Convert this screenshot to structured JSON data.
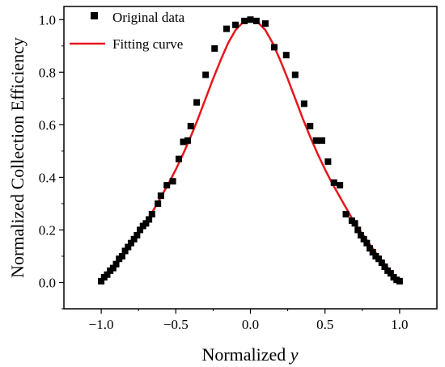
{
  "chart_data": {
    "type": "scatter",
    "xlabel": "Normalized y",
    "ylabel": "Normalized Collection Efficiency",
    "xlim": [
      -1.25,
      1.25
    ],
    "ylim": [
      -0.1,
      1.05
    ],
    "xticks": [
      -1.0,
      -0.5,
      0.0,
      0.5,
      1.0
    ],
    "xtick_labels": [
      "−1.0",
      "−0.5",
      "0.0",
      "0.5",
      "1.0"
    ],
    "yticks": [
      0.0,
      0.2,
      0.4,
      0.6,
      0.8,
      1.0
    ],
    "ytick_labels": [
      "0.0",
      "0.2",
      "0.4",
      "0.6",
      "0.8",
      "1.0"
    ],
    "legend_position": "top-left",
    "series": [
      {
        "name": "Original data",
        "kind": "markers",
        "color": "#000000",
        "marker": "square",
        "x": [
          -1.0,
          -0.98,
          -0.96,
          -0.94,
          -0.92,
          -0.9,
          -0.88,
          -0.86,
          -0.84,
          -0.82,
          -0.8,
          -0.78,
          -0.76,
          -0.74,
          -0.72,
          -0.7,
          -0.68,
          -0.66,
          -0.62,
          -0.6,
          -0.56,
          -0.52,
          -0.48,
          -0.45,
          -0.42,
          -0.4,
          -0.36,
          -0.3,
          -0.24,
          -0.16,
          -0.1,
          -0.04,
          0.0,
          0.04,
          0.1,
          0.16,
          0.24,
          0.3,
          0.36,
          0.4,
          0.44,
          0.48,
          0.52,
          0.56,
          0.6,
          0.64,
          0.68,
          0.7,
          0.72,
          0.74,
          0.76,
          0.78,
          0.8,
          0.82,
          0.84,
          0.86,
          0.88,
          0.9,
          0.92,
          0.94,
          0.96,
          0.98,
          1.0
        ],
        "y": [
          0.005,
          0.02,
          0.03,
          0.045,
          0.055,
          0.07,
          0.09,
          0.1,
          0.12,
          0.135,
          0.15,
          0.165,
          0.18,
          0.2,
          0.215,
          0.225,
          0.24,
          0.26,
          0.3,
          0.33,
          0.37,
          0.385,
          0.47,
          0.535,
          0.54,
          0.595,
          0.685,
          0.79,
          0.89,
          0.965,
          0.98,
          0.995,
          1.0,
          0.995,
          0.985,
          0.895,
          0.865,
          0.79,
          0.68,
          0.595,
          0.54,
          0.54,
          0.46,
          0.38,
          0.37,
          0.26,
          0.235,
          0.225,
          0.2,
          0.18,
          0.165,
          0.15,
          0.13,
          0.115,
          0.1,
          0.09,
          0.075,
          0.06,
          0.045,
          0.035,
          0.02,
          0.01,
          0.005
        ]
      },
      {
        "name": "Fitting curve",
        "kind": "line",
        "color": "#e8161b",
        "x": [
          -1.0,
          -0.95,
          -0.9,
          -0.85,
          -0.8,
          -0.75,
          -0.7,
          -0.65,
          -0.6,
          -0.55,
          -0.5,
          -0.45,
          -0.4,
          -0.35,
          -0.3,
          -0.25,
          -0.2,
          -0.15,
          -0.1,
          -0.05,
          0.0,
          0.05,
          0.1,
          0.15,
          0.2,
          0.25,
          0.3,
          0.35,
          0.4,
          0.45,
          0.5,
          0.55,
          0.6,
          0.65,
          0.7,
          0.75,
          0.8,
          0.85,
          0.9,
          0.95,
          1.0
        ],
        "y": [
          0.0,
          0.035,
          0.07,
          0.105,
          0.145,
          0.185,
          0.225,
          0.275,
          0.325,
          0.375,
          0.43,
          0.49,
          0.555,
          0.625,
          0.7,
          0.775,
          0.845,
          0.91,
          0.96,
          0.99,
          1.0,
          0.99,
          0.96,
          0.91,
          0.845,
          0.775,
          0.7,
          0.625,
          0.555,
          0.49,
          0.43,
          0.375,
          0.325,
          0.275,
          0.225,
          0.185,
          0.145,
          0.105,
          0.07,
          0.035,
          0.0
        ]
      }
    ]
  }
}
